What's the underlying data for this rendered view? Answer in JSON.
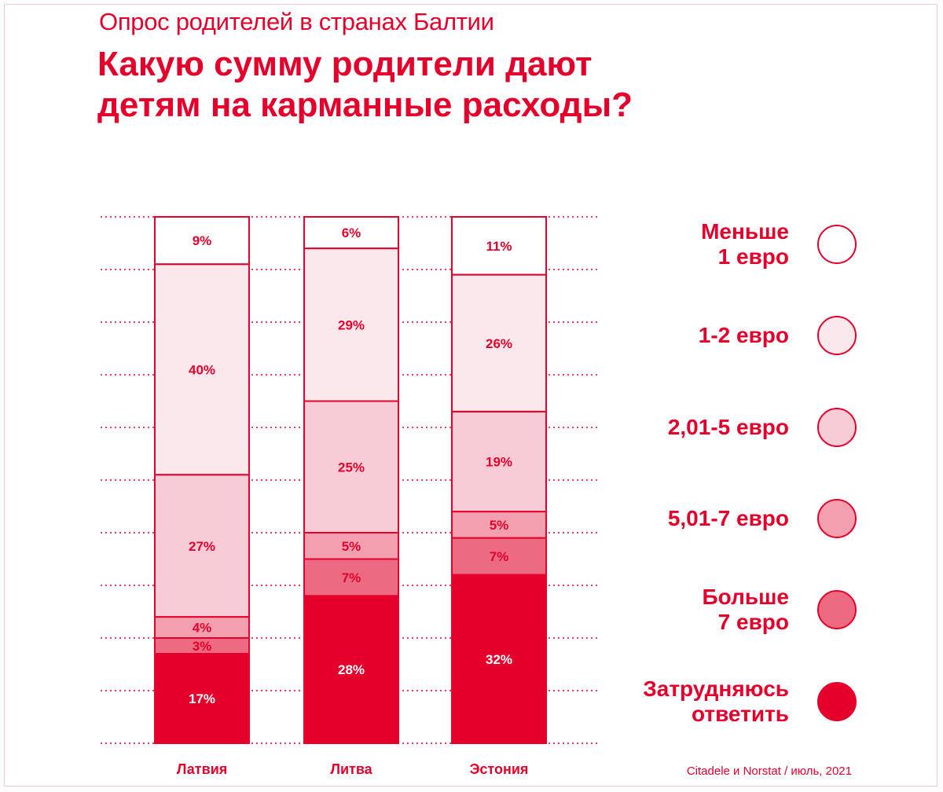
{
  "subtitle": "Опрос родителей в странах Балтии",
  "title_lines": [
    "Какую сумму родители дают",
    "детям на карманные расходы?"
  ],
  "source": "Citadele и Norstat / июль, 2021",
  "colors": {
    "accent": "#e4002b",
    "categories": [
      "#ffffff",
      "#fbe8ec",
      "#f8ccd6",
      "#f2a0b0",
      "#ec6b82",
      "#e4002b"
    ]
  },
  "chart_data": {
    "type": "bar",
    "stacked": true,
    "orientation": "vertical-stacked-percent",
    "categories": [
      "Латвия",
      "Литва",
      "Эстония"
    ],
    "series": [
      {
        "name": "Меньше 1 евро",
        "values": [
          9,
          6,
          11
        ]
      },
      {
        "name": "1-2 евро",
        "values": [
          40,
          29,
          26
        ]
      },
      {
        "name": "2,01-5 евро",
        "values": [
          27,
          25,
          19
        ]
      },
      {
        "name": "5,01-7 евро",
        "values": [
          4,
          5,
          5
        ]
      },
      {
        "name": "Больше 7 евро",
        "values": [
          3,
          7,
          7
        ]
      },
      {
        "name": "Затрудняюсь ответить",
        "values": [
          17,
          28,
          32
        ]
      }
    ],
    "value_suffix": "%",
    "ylim": [
      0,
      100
    ],
    "grid": "dotted"
  },
  "legend": [
    {
      "lines": [
        "Меньше",
        "1 евро"
      ]
    },
    {
      "lines": [
        "1-2 евро"
      ]
    },
    {
      "lines": [
        "2,01-5 евро"
      ]
    },
    {
      "lines": [
        "5,01-7 евро"
      ]
    },
    {
      "lines": [
        "Больше",
        "7 евро"
      ]
    },
    {
      "lines": [
        "Затрудняюсь",
        "ответить"
      ]
    }
  ]
}
